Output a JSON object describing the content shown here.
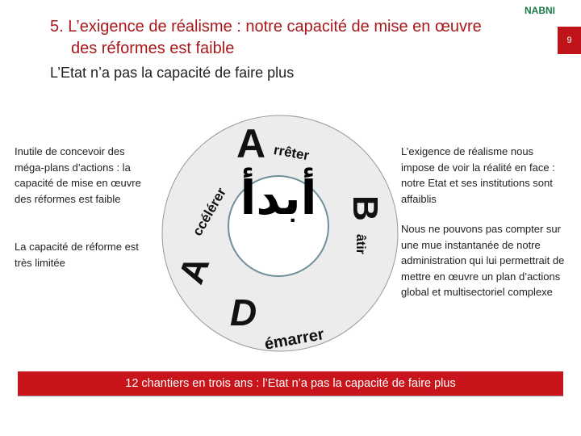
{
  "header": {
    "title_line1": "5. L’exigence de réalisme : notre capacité de mise en œuvre",
    "title_line2": "des réformes est faible",
    "subtitle": "L’Etat n’a pas la capacité de faire plus",
    "logo": "NABNI",
    "page_number": "9"
  },
  "left": {
    "p1": "Inutile de concevoir des méga-plans d’actions : la capacité de mise en œuvre des réformes est faible",
    "p2": "La capacité de réforme est très limitée"
  },
  "right": {
    "p1": "L’exigence de réalisme nous impose de voir la réalité en face : notre Etat et ses institutions sont affaiblis",
    "p2": "Nous ne pouvons pas compter sur une mue instantanée de notre administration qui lui permettrait de mettre en œuvre un plan d’actions global et multisectoriel complexe"
  },
  "wheel": {
    "center": "أبدأ",
    "top_letter": "A",
    "top_word": "rrêter",
    "right_letter": "B",
    "right_word": "âtir",
    "bottom_letter": "D",
    "bottom_word": "émarrer",
    "left_letter": "A",
    "left_word": "ccélérer",
    "colors": {
      "ring": "#ececec",
      "inner_border": "#6f8f9a"
    }
  },
  "banner": {
    "text": "12 chantiers en trois ans : l’Etat n’a pas la capacité de faire plus",
    "color": "#c8141a"
  }
}
